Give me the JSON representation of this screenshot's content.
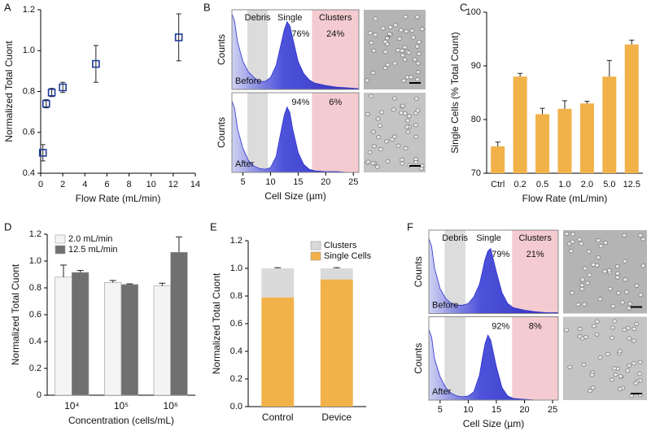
{
  "chart_data": [
    {
      "type": "scatter",
      "panel_label": "A",
      "x": [
        0.2,
        0.5,
        1,
        2,
        5,
        12.5
      ],
      "values": [
        0.5,
        0.74,
        0.795,
        0.82,
        0.935,
        1.065
      ],
      "errors": [
        0.04,
        0.02,
        0.02,
        0.025,
        0.09,
        0.115
      ],
      "color": "#1f3c9a",
      "xlim": [
        0,
        14
      ],
      "xticks": [
        0,
        2,
        4,
        6,
        8,
        10,
        12,
        14
      ],
      "ylim": [
        0.4,
        1.2
      ],
      "yticks": [
        0.4,
        0.6,
        0.8,
        {
          "value": 1,
          "label": "1.0"
        },
        1.2
      ],
      "x_label": "Flow Rate (mL/min)",
      "y_label": "Normalized Total Cuont"
    },
    {
      "type": "area",
      "panel_label": "B",
      "x": [
        3,
        3.5,
        4,
        5,
        6,
        7,
        8,
        9,
        10,
        11,
        12,
        12.5,
        13,
        13.5,
        14,
        15,
        16,
        17,
        18,
        20,
        22,
        24,
        26
      ],
      "color": "#2b30d0",
      "xlim": [
        3,
        26
      ],
      "xticks": [
        5,
        10,
        15,
        20,
        25
      ],
      "ylim": [
        0,
        1
      ],
      "x_label": "Cell Size (µm)",
      "y_label": "Counts",
      "regions": [
        {
          "name": "Debris",
          "xlim": [
            5.8,
            9.5
          ],
          "color": "#dcdcdc"
        },
        {
          "name": "Single",
          "xlim": [
            9.5,
            17.5
          ],
          "color": "#ffffff"
        },
        {
          "name": "Clusters",
          "xlim": [
            17.5,
            26
          ],
          "color": "#f3cbd1"
        }
      ],
      "panels": [
        {
          "label": "Before",
          "values": [
            0.95,
            0.85,
            0.6,
            0.35,
            0.22,
            0.15,
            0.1,
            0.1,
            0.15,
            0.3,
            0.6,
            0.75,
            0.85,
            0.8,
            0.65,
            0.35,
            0.2,
            0.12,
            0.08,
            0.05,
            0.03,
            0.02,
            0.01
          ],
          "percent_values": [
            76,
            24
          ],
          "percent_labels": [
            "76%",
            "24%"
          ]
        },
        {
          "label": "After",
          "values": [
            0.9,
            0.8,
            0.55,
            0.3,
            0.15,
            0.08,
            0.05,
            0.04,
            0.06,
            0.2,
            0.55,
            0.72,
            0.82,
            0.75,
            0.55,
            0.25,
            0.1,
            0.04,
            0.02,
            0.01,
            0.01,
            0,
            0
          ],
          "percent_values": [
            94,
            6
          ],
          "percent_labels": [
            "94%",
            "6%"
          ]
        }
      ]
    },
    {
      "type": "bar",
      "panel_label": "C",
      "categories": [
        "Ctrl",
        "0.2",
        "0.5",
        "1.0",
        "2.0",
        "5.0",
        "12.5"
      ],
      "values": [
        75,
        88,
        81,
        82,
        83,
        88,
        94
      ],
      "errors": [
        0.8,
        0.6,
        1.1,
        1.5,
        0.4,
        3,
        0.8
      ],
      "color": "#f2b24a",
      "ylim": [
        70,
        100
      ],
      "yticks": [
        70,
        80,
        90,
        100
      ],
      "x_label": "Flow Rate (mL/min)",
      "y_label": "Single Cells (% Total Count)"
    },
    {
      "type": "bar",
      "panel_label": "D",
      "categories": [
        "10⁴",
        "10⁵",
        "10⁶"
      ],
      "series": [
        {
          "name": "2.0 mL/min",
          "color": "#f4f4f4",
          "values": [
            0.88,
            0.84,
            0.815
          ],
          "errors": [
            0.09,
            0.015,
            0.02
          ]
        },
        {
          "name": "12.5 mL/min",
          "color": "#707070",
          "values": [
            0.915,
            0.825,
            1.065
          ],
          "errors": [
            0.015,
            0.005,
            0.115
          ]
        }
      ],
      "legend": "upper left",
      "ylim": [
        0,
        1.2
      ],
      "yticks": [
        0,
        0.2,
        0.4,
        0.6,
        0.8,
        {
          "value": 1,
          "label": "1.0"
        },
        1.2
      ],
      "x_label": "Concentration (cells/mL)",
      "y_label": "Normalized Total Cuont"
    },
    {
      "type": "bar",
      "stacked": true,
      "panel_label": "E",
      "categories": [
        "Control",
        "Device"
      ],
      "series": [
        {
          "name": "Single Cells",
          "color": "#f2b24a",
          "values": [
            0.79,
            0.92
          ],
          "errors": [
            0.005,
            0.005
          ]
        },
        {
          "name": "Clusters",
          "color": "#dadada",
          "values": [
            0.21,
            0.08
          ],
          "errors": [
            0.005,
            0.005
          ]
        }
      ],
      "legend": "upper right",
      "ylim": [
        0,
        1.2
      ],
      "yticks": [
        {
          "value": 0,
          "label": "0.0"
        },
        0.2,
        0.4,
        0.6,
        0.8,
        {
          "value": 1,
          "label": "1.0"
        },
        1.2
      ],
      "y_label": "Normalized Total Cuont"
    },
    {
      "type": "area",
      "panel_label": "F",
      "x": [
        3,
        3.5,
        4,
        5,
        6,
        7,
        8,
        9,
        10,
        11,
        12,
        12.5,
        13,
        13.5,
        14,
        15,
        16,
        17,
        18,
        20,
        22,
        24,
        26
      ],
      "color": "#2b30d0",
      "xlim": [
        3,
        26
      ],
      "xticks": [
        5,
        10,
        15,
        20,
        25
      ],
      "ylim": [
        0,
        1
      ],
      "x_label": "Cell Size (µm)",
      "y_label": "Counts",
      "regions": [
        {
          "name": "Debris",
          "xlim": [
            5.8,
            9.5
          ],
          "color": "#dcdcdc"
        },
        {
          "name": "Single",
          "xlim": [
            9.5,
            17.8
          ],
          "color": "#ffffff"
        },
        {
          "name": "Clusters",
          "xlim": [
            17.8,
            26
          ],
          "color": "#f3cbd1"
        }
      ],
      "panels": [
        {
          "label": "Before",
          "values": [
            0.9,
            0.8,
            0.55,
            0.3,
            0.18,
            0.12,
            0.1,
            0.1,
            0.12,
            0.2,
            0.35,
            0.5,
            0.65,
            0.75,
            0.78,
            0.5,
            0.25,
            0.12,
            0.07,
            0.04,
            0.02,
            0.01,
            0.01
          ],
          "percent_values": [
            79,
            21
          ],
          "percent_labels": [
            "79%",
            "21%"
          ]
        },
        {
          "label": "After",
          "values": [
            0.85,
            0.75,
            0.5,
            0.28,
            0.15,
            0.08,
            0.05,
            0.04,
            0.05,
            0.1,
            0.3,
            0.5,
            0.68,
            0.78,
            0.72,
            0.4,
            0.15,
            0.05,
            0.02,
            0.01,
            0,
            0,
            0
          ],
          "percent_values": [
            92,
            8
          ],
          "percent_labels": [
            "92%",
            "8%"
          ]
        }
      ]
    }
  ]
}
